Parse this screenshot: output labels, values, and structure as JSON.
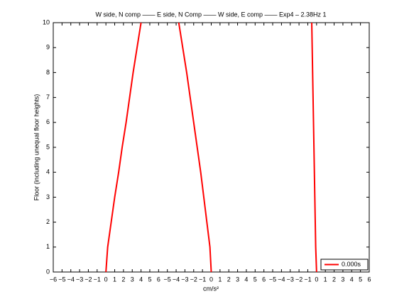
{
  "chart_data": {
    "type": "line",
    "title": "W side, N comp —— E side, N Comp —— W side, E comp —— Exp4 – 2.38Hz 1",
    "x_label": "cm/s²",
    "y_label": "Floor (including unequal floor heights)",
    "xlim": [
      -6,
      30
    ],
    "ylim": [
      0,
      10
    ],
    "xticks": [
      {
        "value": -6,
        "label": "−6"
      },
      {
        "value": -5,
        "label": "−5"
      },
      {
        "value": -4,
        "label": "−4"
      },
      {
        "value": -3,
        "label": "−3"
      },
      {
        "value": -2,
        "label": "−2"
      },
      {
        "value": -1,
        "label": "−1"
      },
      0,
      1,
      2,
      3,
      4,
      5,
      6,
      {
        "value": 7,
        "label": "−5"
      },
      {
        "value": 8,
        "label": "−4"
      },
      {
        "value": 9,
        "label": "−3"
      },
      {
        "value": 10,
        "label": "−2"
      },
      {
        "value": 11,
        "label": "−1"
      },
      {
        "value": 12,
        "label": "0"
      },
      {
        "value": 13,
        "label": "1"
      },
      {
        "value": 14,
        "label": "2"
      },
      {
        "value": 15,
        "label": "3"
      },
      {
        "value": 16,
        "label": "4"
      },
      {
        "value": 17,
        "label": "5"
      },
      {
        "value": 18,
        "label": "6"
      },
      {
        "value": 19,
        "label": "−5"
      },
      {
        "value": 20,
        "label": "−4"
      },
      {
        "value": 21,
        "label": "−3"
      },
      {
        "value": 22,
        "label": "−2"
      },
      {
        "value": 23,
        "label": "−1"
      },
      {
        "value": 24,
        "label": "0"
      },
      {
        "value": 25,
        "label": "1"
      },
      {
        "value": 26,
        "label": "2"
      },
      {
        "value": 27,
        "label": "3"
      },
      {
        "value": 28,
        "label": "4"
      },
      {
        "value": 29,
        "label": "5"
      },
      {
        "value": 30,
        "label": "6"
      }
    ],
    "yticks": [
      0,
      1,
      2,
      3,
      4,
      5,
      6,
      7,
      8,
      9,
      10
    ],
    "legend": "lower right",
    "series": [
      {
        "name": "0.000s",
        "color": "#ff0000",
        "x": [
          0,
          0.2,
          0.6,
          1.0,
          1.45,
          1.85,
          2.3,
          2.7,
          3.1,
          3.55,
          4.0,
          null,
          12,
          11.85,
          11.5,
          11.15,
          10.8,
          10.4,
          10.0,
          9.6,
          9.2,
          8.75,
          8.3,
          null,
          24,
          23.9,
          23.85,
          23.8,
          23.75,
          23.7,
          23.65,
          23.6,
          23.55,
          23.5,
          23.45
        ],
        "values": [
          0,
          1,
          2,
          3,
          4,
          5,
          6,
          7,
          8,
          9,
          10,
          null,
          0,
          1,
          2,
          3,
          4,
          5,
          6,
          7,
          8,
          9,
          10,
          null,
          0,
          1,
          2,
          3,
          4,
          5,
          6,
          7,
          8,
          9,
          10
        ]
      }
    ]
  }
}
